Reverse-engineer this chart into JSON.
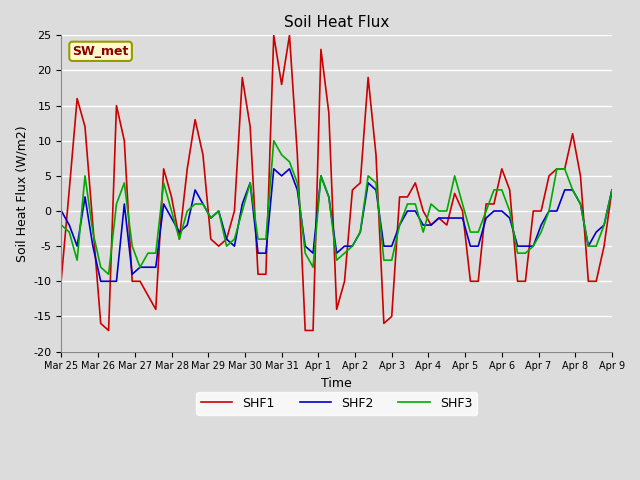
{
  "title": "Soil Heat Flux",
  "xlabel": "Time",
  "ylabel": "Soil Heat Flux (W/m2)",
  "ylim": [
    -20,
    25
  ],
  "annotation_text": "SW_met",
  "annotation_bg": "#FFFACD",
  "annotation_text_color": "#8B0000",
  "annotation_border_color": "#999900",
  "bg_color": "#DCDCDC",
  "series": {
    "SHF1": {
      "color": "#CC0000",
      "linewidth": 1.2
    },
    "SHF2": {
      "color": "#0000CC",
      "linewidth": 1.2
    },
    "SHF3": {
      "color": "#00AA00",
      "linewidth": 1.2
    }
  },
  "xtick_labels": [
    "Mar 25",
    "Mar 26",
    "Mar 27",
    "Mar 28",
    "Mar 29",
    "Mar 30",
    "Mar 31",
    "Apr 1",
    "Apr 2",
    "Apr 3",
    "Apr 4",
    "Apr 5",
    "Apr 6",
    "Apr 7",
    "Apr 8",
    "Apr 9"
  ],
  "ytick_values": [
    -20,
    -15,
    -10,
    -5,
    0,
    5,
    10,
    15,
    20,
    25
  ],
  "shf1": [
    -9.5,
    3,
    16,
    12,
    -2,
    -16,
    -17,
    15,
    10,
    -10,
    -10,
    -12,
    -14,
    6,
    2,
    -4,
    6,
    13,
    8,
    -4,
    -5,
    -4,
    0,
    19,
    12,
    -9,
    -9,
    25,
    18,
    25,
    8,
    -17,
    -17,
    23,
    14,
    -14,
    -10,
    3,
    4,
    19,
    8,
    -16,
    -15,
    2,
    2,
    4,
    0,
    -2,
    -1,
    -2,
    2.5,
    0,
    -10,
    -10,
    1,
    1,
    6,
    3,
    -10,
    -10,
    0,
    0,
    5,
    6,
    6,
    11,
    5,
    -10,
    -10,
    -5,
    3
  ],
  "shf2": [
    0,
    -2,
    -5,
    2,
    -5,
    -10,
    -10,
    -10,
    1,
    -9,
    -8,
    -8,
    -8,
    1,
    -1,
    -3,
    -2,
    3,
    1,
    -1,
    0,
    -4,
    -5,
    1,
    4,
    -6,
    -6,
    6,
    5,
    6,
    3,
    -5,
    -6,
    5,
    2,
    -6,
    -5,
    -5,
    -3,
    4,
    3,
    -5,
    -5,
    -2,
    0,
    0,
    -2,
    -2,
    -1,
    -1,
    -1,
    -1,
    -5,
    -5,
    -1,
    0,
    0,
    -1,
    -5,
    -5,
    -5,
    -2,
    0,
    0,
    3,
    3,
    1,
    -5,
    -3,
    -2,
    3
  ],
  "shf3": [
    -2,
    -3,
    -7,
    5,
    -3,
    -8,
    -9,
    1,
    4,
    -5,
    -8,
    -6,
    -6,
    4,
    0,
    -4,
    0,
    1,
    1,
    -1,
    0,
    -5,
    -4,
    0,
    4,
    -4,
    -4,
    10,
    8,
    7,
    4,
    -6,
    -8,
    5,
    2,
    -7,
    -6,
    -5,
    -3,
    5,
    4,
    -7,
    -7,
    -2,
    1,
    1,
    -3,
    1,
    0,
    0,
    5,
    1,
    -3,
    -3,
    0,
    3,
    3,
    0,
    -6,
    -6,
    -5,
    -3,
    0,
    6,
    6,
    3,
    1,
    -5,
    -5,
    -2,
    3
  ]
}
